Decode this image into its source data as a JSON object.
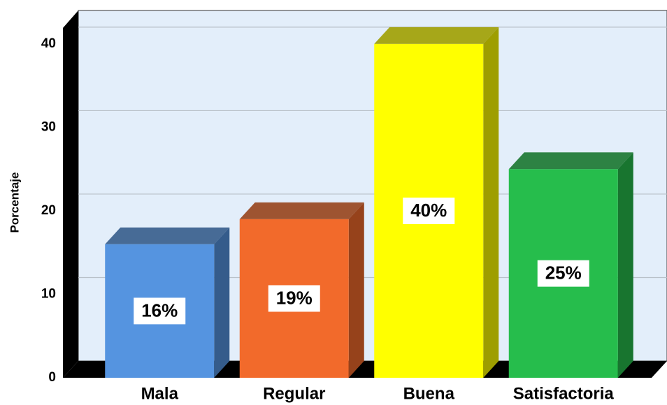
{
  "chart_data": {
    "type": "bar3d",
    "y_axis_label": "Porcentaje",
    "categories": [
      "Mala",
      "Regular",
      "Buena",
      "Satisfactoria"
    ],
    "values": [
      16,
      19,
      40,
      25
    ],
    "value_labels": [
      "16%",
      "19%",
      "40%",
      "25%"
    ],
    "colors": [
      "#5594e0",
      "#f26a2b",
      "#ffff00",
      "#26bd4c"
    ],
    "ylim": [
      0,
      42
    ],
    "yticks": [
      0,
      10,
      20,
      30,
      40
    ],
    "grid": true
  }
}
